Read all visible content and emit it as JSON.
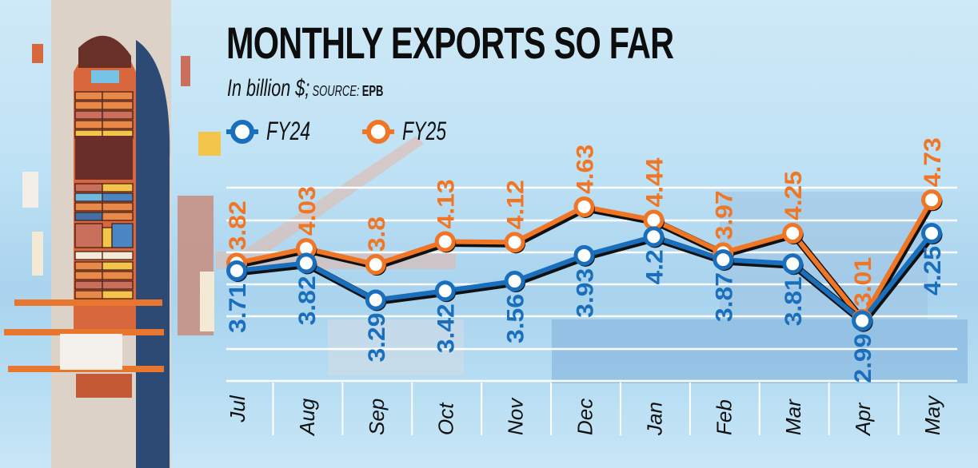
{
  "chart_data": {
    "type": "line",
    "title": "MONTHLY EXPORTS SO FAR",
    "subtitle_unit": "In billion $;",
    "source_label": "SOURCE:",
    "source_value": "EPB",
    "xlabel": "",
    "ylabel": "",
    "ylim": [
      2.6,
      5.2
    ],
    "grid": true,
    "legend_position": "top-left",
    "categories": [
      "Jul",
      "Aug",
      "Sep",
      "Oct",
      "Nov",
      "Dec",
      "Jan",
      "Feb",
      "Mar",
      "Apr",
      "May"
    ],
    "series": [
      {
        "name": "FY24",
        "color": "#1a6fbd",
        "values": [
          3.71,
          3.82,
          3.29,
          3.42,
          3.56,
          3.93,
          4.2,
          3.87,
          3.81,
          2.99,
          4.25
        ],
        "labels": [
          "3.71",
          "3.82",
          "3.29",
          "3.42",
          "3.56",
          "3.93",
          "4.2",
          "3.87",
          "3.81",
          "2.99",
          "4.25"
        ]
      },
      {
        "name": "FY25",
        "color": "#f07524",
        "values": [
          3.82,
          4.03,
          3.8,
          4.13,
          4.12,
          4.63,
          4.44,
          3.97,
          4.25,
          3.01,
          4.73
        ],
        "labels": [
          "3.82",
          "4.03",
          "3.8",
          "4.13",
          "4.12",
          "4.63",
          "4.44",
          "3.97",
          "4.25",
          "3.01",
          "4.73"
        ]
      }
    ]
  },
  "colors": {
    "outline": "#111111",
    "grid": "#ffffff",
    "marker_fill": "#ffffff"
  }
}
